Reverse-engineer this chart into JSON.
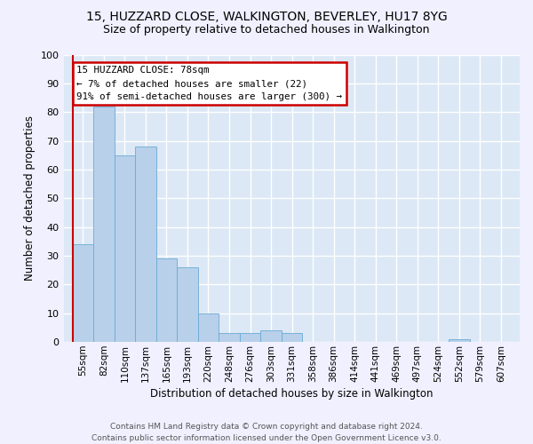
{
  "title_line1": "15, HUZZARD CLOSE, WALKINGTON, BEVERLEY, HU17 8YG",
  "title_line2": "Size of property relative to detached houses in Walkington",
  "xlabel": "Distribution of detached houses by size in Walkington",
  "ylabel": "Number of detached properties",
  "bin_labels": [
    "55sqm",
    "82sqm",
    "110sqm",
    "137sqm",
    "165sqm",
    "193sqm",
    "220sqm",
    "248sqm",
    "276sqm",
    "303sqm",
    "331sqm",
    "358sqm",
    "386sqm",
    "414sqm",
    "441sqm",
    "469sqm",
    "497sqm",
    "524sqm",
    "552sqm",
    "579sqm",
    "607sqm"
  ],
  "bar_values": [
    34,
    82,
    65,
    68,
    29,
    26,
    10,
    3,
    3,
    4,
    3,
    0,
    0,
    0,
    0,
    0,
    0,
    0,
    1,
    0,
    0
  ],
  "bar_color": "#b8d0ea",
  "bar_edge_color": "#6aaad4",
  "annotation_text": "15 HUZZARD CLOSE: 78sqm\n← 7% of detached houses are smaller (22)\n91% of semi-detached houses are larger (300) →",
  "annotation_box_color": "#ffffff",
  "annotation_box_edge_color": "#cc0000",
  "vline_color": "#cc0000",
  "footer_text": "Contains HM Land Registry data © Crown copyright and database right 2024.\nContains public sector information licensed under the Open Government Licence v3.0.",
  "ylim": [
    0,
    100
  ],
  "axes_bg_color": "#dce8f5",
  "fig_bg_color": "#f0f0ff",
  "yticks": [
    0,
    10,
    20,
    30,
    40,
    50,
    60,
    70,
    80,
    90,
    100
  ]
}
